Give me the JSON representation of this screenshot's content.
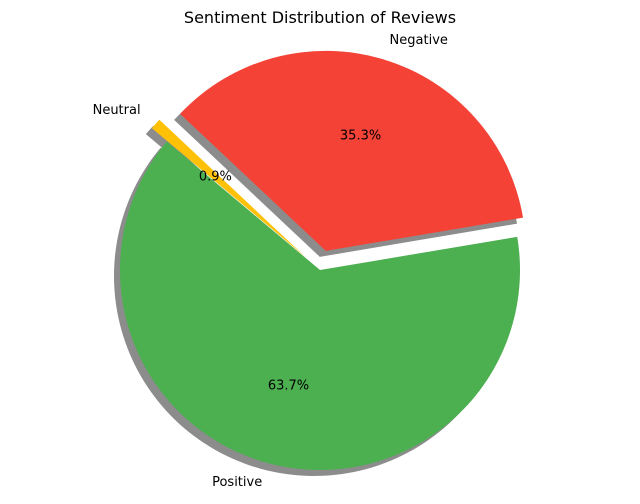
{
  "chart_data": {
    "type": "pie",
    "title": "Sentiment Distribution of Reviews",
    "start_angle_deg": 140,
    "direction": "counterclockwise",
    "shadow": true,
    "slices": [
      {
        "label": "Positive",
        "value": 63.7,
        "pct_label": "63.7%",
        "color": "#4CAF50",
        "exploded": false
      },
      {
        "label": "Negative",
        "value": 35.3,
        "pct_label": "35.3%",
        "color": "#F44336",
        "exploded": true
      },
      {
        "label": "Neutral",
        "value": 0.9,
        "pct_label": "0.9%",
        "color": "#FFC107",
        "exploded": true
      }
    ]
  }
}
